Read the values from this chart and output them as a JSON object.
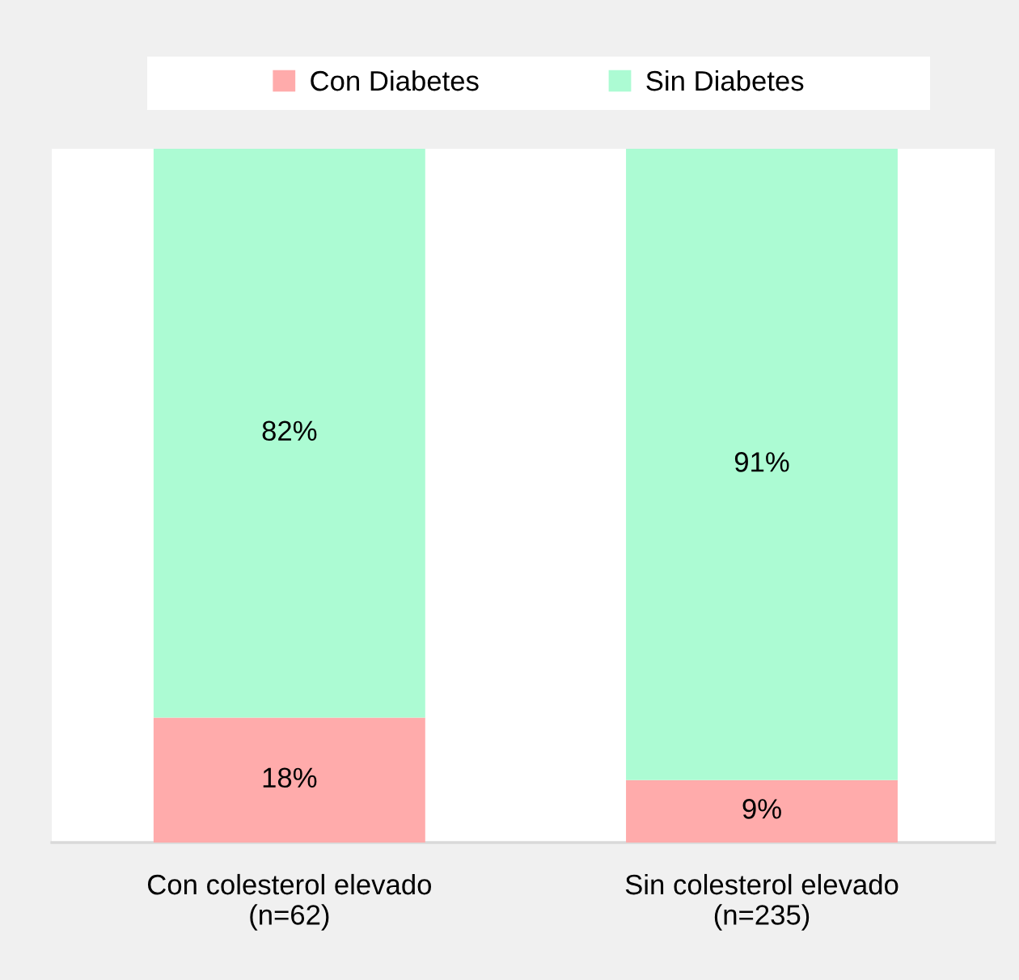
{
  "chart_data": {
    "type": "bar",
    "stacked": true,
    "categories": [
      "Con colesterol elevado\n(n=62)",
      "Sin colesterol elevado\n(n=235)"
    ],
    "series": [
      {
        "name": "Con Diabetes",
        "color": "#ffabab",
        "values": [
          18,
          9
        ],
        "value_labels": [
          "18%",
          "9%"
        ]
      },
      {
        "name": "Sin Diabetes",
        "color": "#acfbd3",
        "values": [
          82,
          91
        ],
        "value_labels": [
          "82%",
          "91%"
        ]
      }
    ],
    "ylim": [
      0,
      100
    ],
    "tick_labels": "x",
    "legend": "top",
    "grid": false
  }
}
